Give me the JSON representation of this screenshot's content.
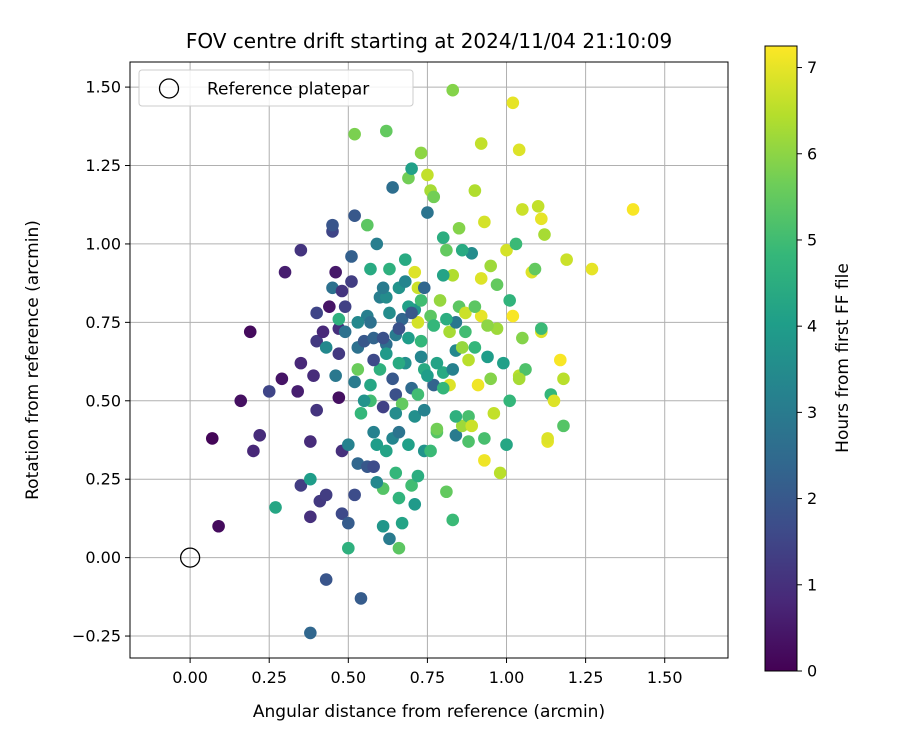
{
  "chart_data": {
    "type": "scatter",
    "title": "FOV centre drift starting at 2024/11/04 21:10:09",
    "xlabel": "Angular distance from reference (arcmin)",
    "ylabel": "Rotation from reference (arcmin)",
    "xlim": [
      -0.19,
      1.7
    ],
    "ylim": [
      -0.32,
      1.58
    ],
    "xticks": [
      "0.00",
      "0.25",
      "0.50",
      "0.75",
      "1.00",
      "1.25",
      "1.50"
    ],
    "xtick_values": [
      0,
      0.25,
      0.5,
      0.75,
      1.0,
      1.25,
      1.5
    ],
    "yticks": [
      "−0.25",
      "0.00",
      "0.25",
      "0.50",
      "0.75",
      "1.00",
      "1.25",
      "1.50"
    ],
    "ytick_values": [
      -0.25,
      0,
      0.25,
      0.5,
      0.75,
      1.0,
      1.25,
      1.5
    ],
    "grid": true,
    "legend": {
      "label": "Reference platepar",
      "location": "upper-left"
    },
    "reference_point": {
      "x": 0.0,
      "y": 0.0
    },
    "colorbar": {
      "label": "Hours from first FF file",
      "colormap": "viridis",
      "range": [
        0,
        7.25
      ],
      "ticks": [
        "0",
        "1",
        "2",
        "3",
        "4",
        "5",
        "6",
        "7"
      ],
      "tick_values": [
        0,
        1,
        2,
        3,
        4,
        5,
        6,
        7
      ]
    },
    "points": [
      [
        0.07,
        0.38,
        0.1
      ],
      [
        0.09,
        0.1,
        0.2
      ],
      [
        0.16,
        0.5,
        0.3
      ],
      [
        0.19,
        0.72,
        0.2
      ],
      [
        0.2,
        0.34,
        0.8
      ],
      [
        0.22,
        0.39,
        0.9
      ],
      [
        0.25,
        0.53,
        1.5
      ],
      [
        0.29,
        0.57,
        0.4
      ],
      [
        0.3,
        0.91,
        0.6
      ],
      [
        0.34,
        0.53,
        0.6
      ],
      [
        0.35,
        0.62,
        0.8
      ],
      [
        0.35,
        0.98,
        1.1
      ],
      [
        0.35,
        0.23,
        1.3
      ],
      [
        0.38,
        0.13,
        1.0
      ],
      [
        0.38,
        0.37,
        0.9
      ],
      [
        0.39,
        0.58,
        0.9
      ],
      [
        0.4,
        0.69,
        1.2
      ],
      [
        0.4,
        0.47,
        1.1
      ],
      [
        0.4,
        0.78,
        1.5
      ],
      [
        0.41,
        0.18,
        1.2
      ],
      [
        0.42,
        0.72,
        0.8
      ],
      [
        0.43,
        0.2,
        1.3
      ],
      [
        0.43,
        -0.07,
        1.9
      ],
      [
        0.44,
        0.8,
        0.4
      ],
      [
        0.45,
        1.04,
        1.5
      ],
      [
        0.45,
        1.06,
        1.9
      ],
      [
        0.45,
        0.86,
        2.7
      ],
      [
        0.46,
        0.91,
        0.5
      ],
      [
        0.47,
        0.73,
        1.0
      ],
      [
        0.47,
        0.65,
        1.2
      ],
      [
        0.47,
        0.51,
        0.3
      ],
      [
        0.48,
        0.14,
        1.6
      ],
      [
        0.48,
        0.85,
        1.1
      ],
      [
        0.48,
        0.34,
        1.0
      ],
      [
        0.49,
        0.8,
        1.4
      ],
      [
        0.5,
        0.36,
        3.2
      ],
      [
        0.5,
        0.11,
        2.1
      ],
      [
        0.51,
        0.88,
        1.3
      ],
      [
        0.51,
        0.96,
        2.2
      ],
      [
        0.52,
        0.56,
        3.0
      ],
      [
        0.52,
        0.2,
        1.7
      ],
      [
        0.53,
        0.67,
        2.7
      ],
      [
        0.53,
        0.3,
        2.4
      ],
      [
        0.53,
        0.6,
        5.6
      ],
      [
        0.54,
        -0.13,
        2.1
      ],
      [
        0.54,
        0.46,
        4.8
      ],
      [
        0.55,
        0.69,
        2.0
      ],
      [
        0.56,
        0.29,
        2.0
      ],
      [
        0.56,
        0.77,
        3.1
      ],
      [
        0.56,
        1.06,
        5.4
      ],
      [
        0.57,
        0.5,
        5.0
      ],
      [
        0.58,
        0.29,
        1.7
      ],
      [
        0.58,
        0.4,
        3.2
      ],
      [
        0.58,
        0.7,
        2.3
      ],
      [
        0.59,
        1.0,
        3.1
      ],
      [
        0.59,
        0.36,
        4.0
      ],
      [
        0.6,
        0.83,
        3.1
      ],
      [
        0.6,
        0.6,
        4.6
      ],
      [
        0.61,
        0.1,
        3.8
      ],
      [
        0.61,
        0.48,
        1.4
      ],
      [
        0.61,
        0.22,
        5.3
      ],
      [
        0.62,
        0.68,
        2.6
      ],
      [
        0.62,
        0.83,
        3.5
      ],
      [
        0.62,
        0.34,
        4.2
      ],
      [
        0.63,
        0.78,
        3.5
      ],
      [
        0.63,
        0.06,
        3.0
      ],
      [
        0.64,
        0.38,
        3.3
      ],
      [
        0.64,
        1.18,
        2.6
      ],
      [
        0.65,
        0.27,
        4.8
      ],
      [
        0.65,
        0.52,
        1.8
      ],
      [
        0.65,
        0.71,
        3.0
      ],
      [
        0.66,
        0.19,
        4.7
      ],
      [
        0.66,
        0.86,
        3.7
      ],
      [
        0.66,
        0.4,
        2.8
      ],
      [
        0.67,
        0.11,
        4.2
      ],
      [
        0.67,
        0.49,
        5.5
      ],
      [
        0.67,
        0.76,
        2.4
      ],
      [
        0.68,
        0.88,
        3.3
      ],
      [
        0.68,
        0.62,
        3.6
      ],
      [
        0.69,
        0.36,
        4.1
      ],
      [
        0.69,
        1.21,
        5.7
      ],
      [
        0.7,
        1.24,
        4.1
      ],
      [
        0.7,
        0.23,
        5.0
      ],
      [
        0.7,
        0.54,
        2.5
      ],
      [
        0.71,
        0.45,
        3.6
      ],
      [
        0.71,
        0.79,
        3.8
      ],
      [
        0.71,
        0.91,
        6.9
      ],
      [
        0.72,
        0.86,
        6.7
      ],
      [
        0.72,
        0.26,
        4.5
      ],
      [
        0.72,
        0.75,
        6.8
      ],
      [
        0.73,
        1.29,
        6.0
      ],
      [
        0.73,
        0.69,
        4.8
      ],
      [
        0.73,
        0.82,
        5.0
      ],
      [
        0.74,
        0.6,
        4.4
      ],
      [
        0.74,
        0.47,
        3.2
      ],
      [
        0.75,
        1.22,
        6.6
      ],
      [
        0.75,
        1.1,
        2.8
      ],
      [
        0.76,
        1.17,
        6.3
      ],
      [
        0.76,
        0.77,
        5.4
      ],
      [
        0.77,
        1.15,
        5.7
      ],
      [
        0.77,
        0.55,
        2.3
      ],
      [
        0.78,
        0.4,
        5.3
      ],
      [
        0.78,
        0.41,
        5.7
      ],
      [
        0.79,
        0.82,
        6.1
      ],
      [
        0.8,
        1.02,
        4.5
      ],
      [
        0.8,
        0.59,
        4.4
      ],
      [
        0.81,
        0.98,
        5.5
      ],
      [
        0.81,
        0.21,
        5.5
      ],
      [
        0.82,
        0.72,
        6.3
      ],
      [
        0.82,
        0.55,
        6.9
      ],
      [
        0.83,
        1.49,
        5.9
      ],
      [
        0.83,
        0.12,
        4.9
      ],
      [
        0.83,
        0.9,
        6.4
      ],
      [
        0.84,
        0.75,
        2.9
      ],
      [
        0.84,
        0.39,
        3.0
      ],
      [
        0.84,
        0.66,
        3.4
      ],
      [
        0.85,
        1.05,
        5.9
      ],
      [
        0.85,
        0.8,
        5.4
      ],
      [
        0.86,
        0.42,
        6.2
      ],
      [
        0.86,
        0.67,
        6.1
      ],
      [
        0.87,
        0.78,
        6.7
      ],
      [
        0.87,
        0.72,
        5.0
      ],
      [
        0.88,
        0.63,
        6.5
      ],
      [
        0.88,
        0.45,
        5.1
      ],
      [
        0.89,
        0.42,
        6.7
      ],
      [
        0.89,
        0.97,
        3.5
      ],
      [
        0.9,
        1.17,
        6.4
      ],
      [
        0.9,
        0.67,
        4.8
      ],
      [
        0.91,
        0.55,
        7.1
      ],
      [
        0.92,
        1.32,
        6.6
      ],
      [
        0.92,
        0.89,
        6.9
      ],
      [
        0.92,
        0.77,
        7.0
      ],
      [
        0.93,
        1.07,
        6.8
      ],
      [
        0.93,
        0.31,
        7.1
      ],
      [
        0.94,
        0.64,
        4.0
      ],
      [
        0.95,
        0.93,
        6.2
      ],
      [
        0.96,
        0.46,
        6.6
      ],
      [
        0.97,
        0.87,
        5.5
      ],
      [
        0.98,
        0.27,
        6.5
      ],
      [
        0.99,
        0.62,
        4.1
      ],
      [
        1.0,
        0.98,
        6.8
      ],
      [
        1.0,
        0.36,
        4.3
      ],
      [
        1.01,
        0.82,
        4.7
      ],
      [
        1.01,
        0.5,
        4.8
      ],
      [
        1.02,
        1.45,
        7.0
      ],
      [
        1.02,
        0.77,
        7.2
      ],
      [
        1.03,
        1.0,
        4.9
      ],
      [
        1.04,
        1.3,
        6.9
      ],
      [
        1.04,
        0.58,
        6.5
      ],
      [
        1.05,
        1.11,
        6.7
      ],
      [
        1.06,
        0.6,
        5.2
      ],
      [
        1.08,
        0.91,
        6.9
      ],
      [
        1.09,
        0.92,
        5.5
      ],
      [
        1.1,
        1.12,
        6.6
      ],
      [
        1.11,
        0.72,
        6.9
      ],
      [
        1.11,
        1.08,
        7.0
      ],
      [
        1.11,
        0.73,
        4.9
      ],
      [
        1.12,
        1.03,
        6.3
      ],
      [
        1.13,
        0.37,
        7.0
      ],
      [
        1.13,
        0.38,
        6.9
      ],
      [
        1.14,
        0.52,
        4.8
      ],
      [
        1.15,
        0.5,
        6.9
      ],
      [
        1.17,
        0.63,
        7.2
      ],
      [
        1.18,
        0.42,
        5.3
      ],
      [
        1.18,
        0.57,
        6.5
      ],
      [
        1.19,
        0.95,
        6.7
      ],
      [
        1.27,
        0.92,
        7.0
      ],
      [
        1.4,
        1.11,
        7.2
      ],
      [
        0.38,
        -0.24,
        2.4
      ],
      [
        0.27,
        0.16,
        4.3
      ],
      [
        0.38,
        0.25,
        4.0
      ],
      [
        0.5,
        0.03,
        4.6
      ],
      [
        0.66,
        0.03,
        5.4
      ],
      [
        0.52,
        1.35,
        5.8
      ],
      [
        0.47,
        0.76,
        4.6
      ],
      [
        0.57,
        0.55,
        4.3
      ],
      [
        0.62,
        0.65,
        3.9
      ],
      [
        0.69,
        0.7,
        4.0
      ],
      [
        0.74,
        0.34,
        3.7
      ],
      [
        0.78,
        0.62,
        4.2
      ],
      [
        0.63,
        0.92,
        4.6
      ],
      [
        0.57,
        0.92,
        4.4
      ],
      [
        0.52,
        1.09,
        2.0
      ],
      [
        0.46,
        0.58,
        2.9
      ],
      [
        0.55,
        0.5,
        3.7
      ],
      [
        0.59,
        0.24,
        3.4
      ],
      [
        0.71,
        0.17,
        3.9
      ],
      [
        0.76,
        0.34,
        4.9
      ],
      [
        0.8,
        0.9,
        4.2
      ],
      [
        0.66,
        0.62,
        4.4
      ],
      [
        0.68,
        0.95,
        4.4
      ],
      [
        0.72,
        0.52,
        5.0
      ],
      [
        0.75,
        0.58,
        4.0
      ],
      [
        0.81,
        0.76,
        4.5
      ],
      [
        0.84,
        0.45,
        4.6
      ],
      [
        0.88,
        0.37,
        5.2
      ],
      [
        0.93,
        0.38,
        5.1
      ],
      [
        0.95,
        0.57,
        5.9
      ],
      [
        0.97,
        0.73,
        6.2
      ],
      [
        1.04,
        0.57,
        6.3
      ],
      [
        1.05,
        0.7,
        5.9
      ],
      [
        0.86,
        0.98,
        4.4
      ],
      [
        0.9,
        0.8,
        5.4
      ],
      [
        0.94,
        0.74,
        6.0
      ],
      [
        0.62,
        1.36,
        5.5
      ],
      [
        0.43,
        0.67,
        3.4
      ],
      [
        0.49,
        0.72,
        2.7
      ],
      [
        0.53,
        0.75,
        3.4
      ],
      [
        0.57,
        0.75,
        2.7
      ],
      [
        0.61,
        0.86,
        3.0
      ],
      [
        0.65,
        0.46,
        3.5
      ],
      [
        0.69,
        0.8,
        4.1
      ],
      [
        0.73,
        0.64,
        3.3
      ],
      [
        0.77,
        0.74,
        4.8
      ],
      [
        0.8,
        0.54,
        4.8
      ],
      [
        0.83,
        0.6,
        3.2
      ],
      [
        0.58,
        0.63,
        1.6
      ],
      [
        0.66,
        0.73,
        1.8
      ],
      [
        0.7,
        0.78,
        2.0
      ],
      [
        0.74,
        0.86,
        2.4
      ],
      [
        0.64,
        0.57,
        2.0
      ],
      [
        0.61,
        0.7,
        1.8
      ]
    ]
  }
}
